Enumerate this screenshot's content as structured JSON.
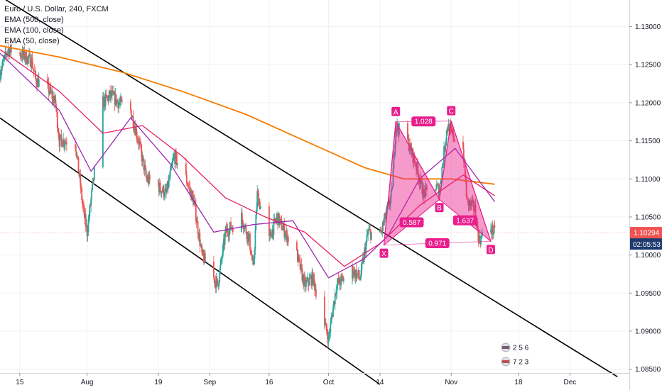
{
  "header": {
    "symbol": "Euro / U.S. Dollar, 240, FXCM",
    "indicators": [
      "EMA (500, close)",
      "EMA (100, close)",
      "EMA (50, close)"
    ]
  },
  "colors": {
    "candle_up": "#26a69a",
    "candle_down": "#ef5350",
    "ema_500": "#f57c00",
    "ema_100": "#e91e63",
    "ema_50": "#9c27b0",
    "pattern_fill": "#e91e8c",
    "channel": "#000000",
    "price_tag": "#ef5350",
    "timer_tag": "#1e3a6e"
  },
  "chart_data": {
    "type": "candlestick",
    "symbol": "EURUSD",
    "timeframe": "240",
    "ylim": [
      1.0845,
      1.1335
    ],
    "y_ticks": [
      "1.13000",
      "1.12500",
      "1.12000",
      "1.11500",
      "1.11000",
      "1.10500",
      "1.10000",
      "1.09500",
      "1.09000",
      "1.08500"
    ],
    "x_ticks": [
      "15",
      "Aug",
      "19",
      "Sep",
      "16",
      "Oct",
      "14",
      "Nov",
      "18",
      "Dec"
    ],
    "x_tick_dates": [
      "2019-07-15",
      "2019-08-01",
      "2019-08-19",
      "2019-09-01",
      "2019-09-16",
      "2019-10-01",
      "2019-10-14",
      "2019-11-01",
      "2019-11-18",
      "2019-12-01"
    ],
    "xlim": [
      "2019-07-10",
      "2019-12-16"
    ],
    "price_path": [
      [
        "2019-07-10",
        1.124
      ],
      [
        "2019-07-12",
        1.127
      ],
      [
        "2019-07-15",
        1.1265
      ],
      [
        "2019-07-18",
        1.1255
      ],
      [
        "2019-07-19",
        1.123
      ],
      [
        "2019-07-22",
        1.122
      ],
      [
        "2019-07-24",
        1.12
      ],
      [
        "2019-07-25",
        1.115
      ],
      [
        "2019-07-29",
        1.115
      ],
      [
        "2019-07-31",
        1.106
      ],
      [
        "2019-08-01",
        1.103
      ],
      [
        "2019-08-05",
        1.12
      ],
      [
        "2019-08-07",
        1.121
      ],
      [
        "2019-08-09",
        1.12
      ],
      [
        "2019-08-12",
        1.119
      ],
      [
        "2019-08-14",
        1.115
      ],
      [
        "2019-08-16",
        1.11
      ],
      [
        "2019-08-19",
        1.109
      ],
      [
        "2019-08-21",
        1.108
      ],
      [
        "2019-08-23",
        1.113
      ],
      [
        "2019-08-26",
        1.11
      ],
      [
        "2019-08-28",
        1.107
      ],
      [
        "2019-08-30",
        1.1
      ],
      [
        "2019-09-02",
        1.097
      ],
      [
        "2019-09-03",
        1.096
      ],
      [
        "2019-09-05",
        1.103
      ],
      [
        "2019-09-09",
        1.105
      ],
      [
        "2019-09-11",
        1.102
      ],
      [
        "2019-09-12",
        1.098
      ],
      [
        "2019-09-13",
        1.108
      ],
      [
        "2019-09-16",
        1.102
      ],
      [
        "2019-09-18",
        1.105
      ],
      [
        "2019-09-20",
        1.103
      ],
      [
        "2019-09-23",
        1.1
      ],
      [
        "2019-09-25",
        1.096
      ],
      [
        "2019-09-27",
        1.097
      ],
      [
        "2019-09-30",
        1.091
      ],
      [
        "2019-10-01",
        1.089
      ],
      [
        "2019-10-03",
        1.096
      ],
      [
        "2019-10-07",
        1.098
      ],
      [
        "2019-10-09",
        1.097
      ],
      [
        "2019-10-11",
        1.103
      ],
      [
        "2019-10-14",
        1.1025
      ],
      [
        "2019-10-17",
        1.108
      ],
      [
        "2019-10-18",
        1.117
      ],
      [
        "2019-10-21",
        1.115
      ],
      [
        "2019-10-23",
        1.112
      ],
      [
        "2019-10-25",
        1.108
      ],
      [
        "2019-10-28",
        1.109
      ],
      [
        "2019-10-29",
        1.1085
      ],
      [
        "2019-10-31",
        1.117
      ],
      [
        "2019-11-01",
        1.116
      ],
      [
        "2019-11-04",
        1.114
      ],
      [
        "2019-11-05",
        1.107
      ],
      [
        "2019-11-07",
        1.106
      ],
      [
        "2019-11-08",
        1.102
      ],
      [
        "2019-11-11",
        1.1035
      ],
      [
        "2019-11-12",
        1.1029
      ]
    ],
    "series": [
      {
        "name": "EMA (500, close)",
        "points": [
          [
            "2019-07-10",
            1.1275
          ],
          [
            "2019-07-25",
            1.126
          ],
          [
            "2019-08-10",
            1.124
          ],
          [
            "2019-08-25",
            1.1215
          ],
          [
            "2019-09-10",
            1.1185
          ],
          [
            "2019-09-25",
            1.115
          ],
          [
            "2019-10-10",
            1.1115
          ],
          [
            "2019-10-20",
            1.11
          ],
          [
            "2019-11-01",
            1.11
          ],
          [
            "2019-11-12",
            1.1093
          ]
        ]
      },
      {
        "name": "EMA (100, close)",
        "points": [
          [
            "2019-07-10",
            1.127
          ],
          [
            "2019-07-25",
            1.1215
          ],
          [
            "2019-08-05",
            1.116
          ],
          [
            "2019-08-15",
            1.117
          ],
          [
            "2019-08-25",
            1.113
          ],
          [
            "2019-09-05",
            1.1075
          ],
          [
            "2019-09-15",
            1.105
          ],
          [
            "2019-09-25",
            1.103
          ],
          [
            "2019-10-05",
            1.0985
          ],
          [
            "2019-10-14",
            1.1015
          ],
          [
            "2019-10-24",
            1.1065
          ],
          [
            "2019-11-04",
            1.1105
          ],
          [
            "2019-11-12",
            1.1078
          ]
        ]
      },
      {
        "name": "EMA (50, close)",
        "points": [
          [
            "2019-07-10",
            1.1265
          ],
          [
            "2019-07-25",
            1.119
          ],
          [
            "2019-08-02",
            1.111
          ],
          [
            "2019-08-12",
            1.118
          ],
          [
            "2019-08-22",
            1.112
          ],
          [
            "2019-09-02",
            1.103
          ],
          [
            "2019-09-12",
            1.104
          ],
          [
            "2019-09-22",
            1.1045
          ],
          [
            "2019-10-01",
            1.097
          ],
          [
            "2019-10-10",
            1.0995
          ],
          [
            "2019-10-16",
            1.1025
          ],
          [
            "2019-10-24",
            1.11
          ],
          [
            "2019-11-02",
            1.114
          ],
          [
            "2019-11-12",
            1.107
          ]
        ]
      }
    ],
    "channel_lines": [
      {
        "from": [
          "2019-07-10",
          1.134
        ],
        "to": [
          "2019-12-13",
          1.084
        ]
      },
      {
        "from": [
          "2019-07-10",
          1.118
        ],
        "to": [
          "2019-10-14",
          1.083
        ]
      }
    ],
    "pattern": {
      "points": [
        {
          "label": "X",
          "date": "2019-10-15",
          "price": 1.1013
        },
        {
          "label": "A",
          "date": "2019-10-18",
          "price": 1.1175
        },
        {
          "label": "B",
          "date": "2019-10-29",
          "price": 1.1073
        },
        {
          "label": "C",
          "date": "2019-11-01",
          "price": 1.1176
        },
        {
          "label": "D",
          "date": "2019-11-11",
          "price": 1.1018
        }
      ],
      "ratios": [
        {
          "text": "1.028",
          "between": [
            "A",
            "C"
          ]
        },
        {
          "text": "0.587",
          "between": [
            "X",
            "B"
          ]
        },
        {
          "text": "1.637",
          "between": [
            "B",
            "D"
          ]
        },
        {
          "text": "0.971",
          "between": [
            "X",
            "D"
          ]
        }
      ]
    },
    "last_price": "1.10294",
    "countdown": "02:05:53",
    "badges": [
      {
        "text": "2 5 6"
      },
      {
        "text": "7 2 3"
      }
    ]
  }
}
